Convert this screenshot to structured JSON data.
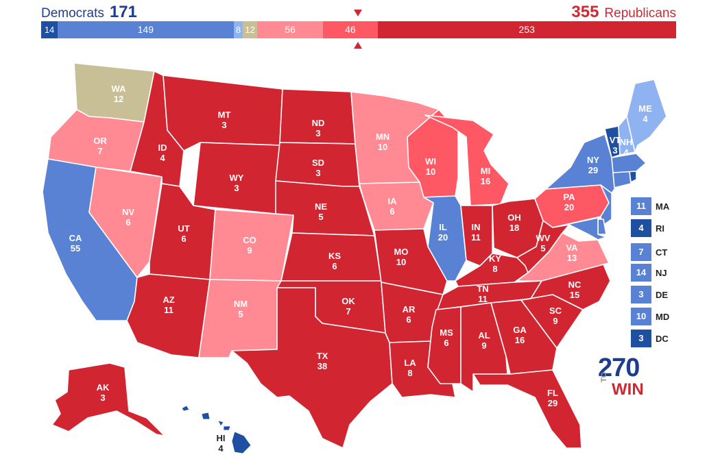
{
  "header": {
    "dem_label": "Democrats",
    "dem_total": "171",
    "rep_total": "355",
    "rep_label": "Republicans"
  },
  "colors": {
    "safe_d": "#1f4fa0",
    "likely_d": "#5a82d4",
    "lean_d": "#8fb2f0",
    "tossup": "#c8bf96",
    "lean_r": "#ff8a94",
    "likely_r": "#ff5865",
    "safe_r": "#d22532"
  },
  "bar": [
    {
      "value": 14,
      "label": "14",
      "rating": "safe_d"
    },
    {
      "value": 149,
      "label": "149",
      "rating": "likely_d"
    },
    {
      "value": 8,
      "label": "8",
      "rating": "lean_d"
    },
    {
      "value": 12,
      "label": "12",
      "rating": "tossup"
    },
    {
      "value": 56,
      "label": "56",
      "rating": "lean_r"
    },
    {
      "value": 46,
      "label": "46",
      "rating": "likely_r"
    },
    {
      "value": 253,
      "label": "253",
      "rating": "safe_r"
    }
  ],
  "states": [
    {
      "code": "WA",
      "ev": "12",
      "rating": "tossup"
    },
    {
      "code": "OR",
      "ev": "7",
      "rating": "lean_r"
    },
    {
      "code": "CA",
      "ev": "55",
      "rating": "likely_d"
    },
    {
      "code": "NV",
      "ev": "6",
      "rating": "lean_r"
    },
    {
      "code": "ID",
      "ev": "4",
      "rating": "safe_r"
    },
    {
      "code": "MT",
      "ev": "3",
      "rating": "safe_r"
    },
    {
      "code": "WY",
      "ev": "3",
      "rating": "safe_r"
    },
    {
      "code": "UT",
      "ev": "6",
      "rating": "safe_r"
    },
    {
      "code": "AZ",
      "ev": "11",
      "rating": "safe_r"
    },
    {
      "code": "CO",
      "ev": "9",
      "rating": "lean_r"
    },
    {
      "code": "NM",
      "ev": "5",
      "rating": "lean_r"
    },
    {
      "code": "ND",
      "ev": "3",
      "rating": "safe_r"
    },
    {
      "code": "SD",
      "ev": "3",
      "rating": "safe_r"
    },
    {
      "code": "NE",
      "ev": "5",
      "rating": "safe_r"
    },
    {
      "code": "KS",
      "ev": "6",
      "rating": "safe_r"
    },
    {
      "code": "OK",
      "ev": "7",
      "rating": "safe_r"
    },
    {
      "code": "TX",
      "ev": "38",
      "rating": "safe_r"
    },
    {
      "code": "MN",
      "ev": "10",
      "rating": "lean_r"
    },
    {
      "code": "IA",
      "ev": "6",
      "rating": "lean_r"
    },
    {
      "code": "MO",
      "ev": "10",
      "rating": "safe_r"
    },
    {
      "code": "AR",
      "ev": "6",
      "rating": "safe_r"
    },
    {
      "code": "LA",
      "ev": "8",
      "rating": "safe_r"
    },
    {
      "code": "WI",
      "ev": "10",
      "rating": "likely_r"
    },
    {
      "code": "IL",
      "ev": "20",
      "rating": "likely_d"
    },
    {
      "code": "MI",
      "ev": "16",
      "rating": "likely_r"
    },
    {
      "code": "IN",
      "ev": "11",
      "rating": "safe_r"
    },
    {
      "code": "OH",
      "ev": "18",
      "rating": "safe_r"
    },
    {
      "code": "KY",
      "ev": "8",
      "rating": "safe_r"
    },
    {
      "code": "TN",
      "ev": "11",
      "rating": "safe_r"
    },
    {
      "code": "MS",
      "ev": "6",
      "rating": "safe_r"
    },
    {
      "code": "AL",
      "ev": "9",
      "rating": "safe_r"
    },
    {
      "code": "GA",
      "ev": "16",
      "rating": "safe_r"
    },
    {
      "code": "FL",
      "ev": "29",
      "rating": "safe_r"
    },
    {
      "code": "SC",
      "ev": "9",
      "rating": "safe_r"
    },
    {
      "code": "NC",
      "ev": "15",
      "rating": "safe_r"
    },
    {
      "code": "VA",
      "ev": "13",
      "rating": "lean_r"
    },
    {
      "code": "WV",
      "ev": "5",
      "rating": "safe_r"
    },
    {
      "code": "PA",
      "ev": "20",
      "rating": "likely_r"
    },
    {
      "code": "NY",
      "ev": "29",
      "rating": "likely_d"
    },
    {
      "code": "VT",
      "ev": "3",
      "rating": "safe_d"
    },
    {
      "code": "NH",
      "ev": "4",
      "rating": "lean_d"
    },
    {
      "code": "ME",
      "ev": "4",
      "rating": "lean_d"
    },
    {
      "code": "AK",
      "ev": "3",
      "rating": "safe_r"
    },
    {
      "code": "HI",
      "ev": "4",
      "rating": "safe_d"
    }
  ],
  "northeast_boxes": [
    {
      "code": "MA",
      "ev": "11",
      "rating": "likely_d"
    },
    {
      "code": "RI",
      "ev": "4",
      "rating": "safe_d"
    },
    {
      "code": "CT",
      "ev": "7",
      "rating": "likely_d"
    },
    {
      "code": "NJ",
      "ev": "14",
      "rating": "likely_d"
    },
    {
      "code": "DE",
      "ev": "3",
      "rating": "likely_d"
    },
    {
      "code": "MD",
      "ev": "10",
      "rating": "likely_d"
    },
    {
      "code": "DC",
      "ev": "3",
      "rating": "safe_d"
    }
  ],
  "logo": {
    "number": "270",
    "to": "TO",
    "win": "WIN"
  }
}
